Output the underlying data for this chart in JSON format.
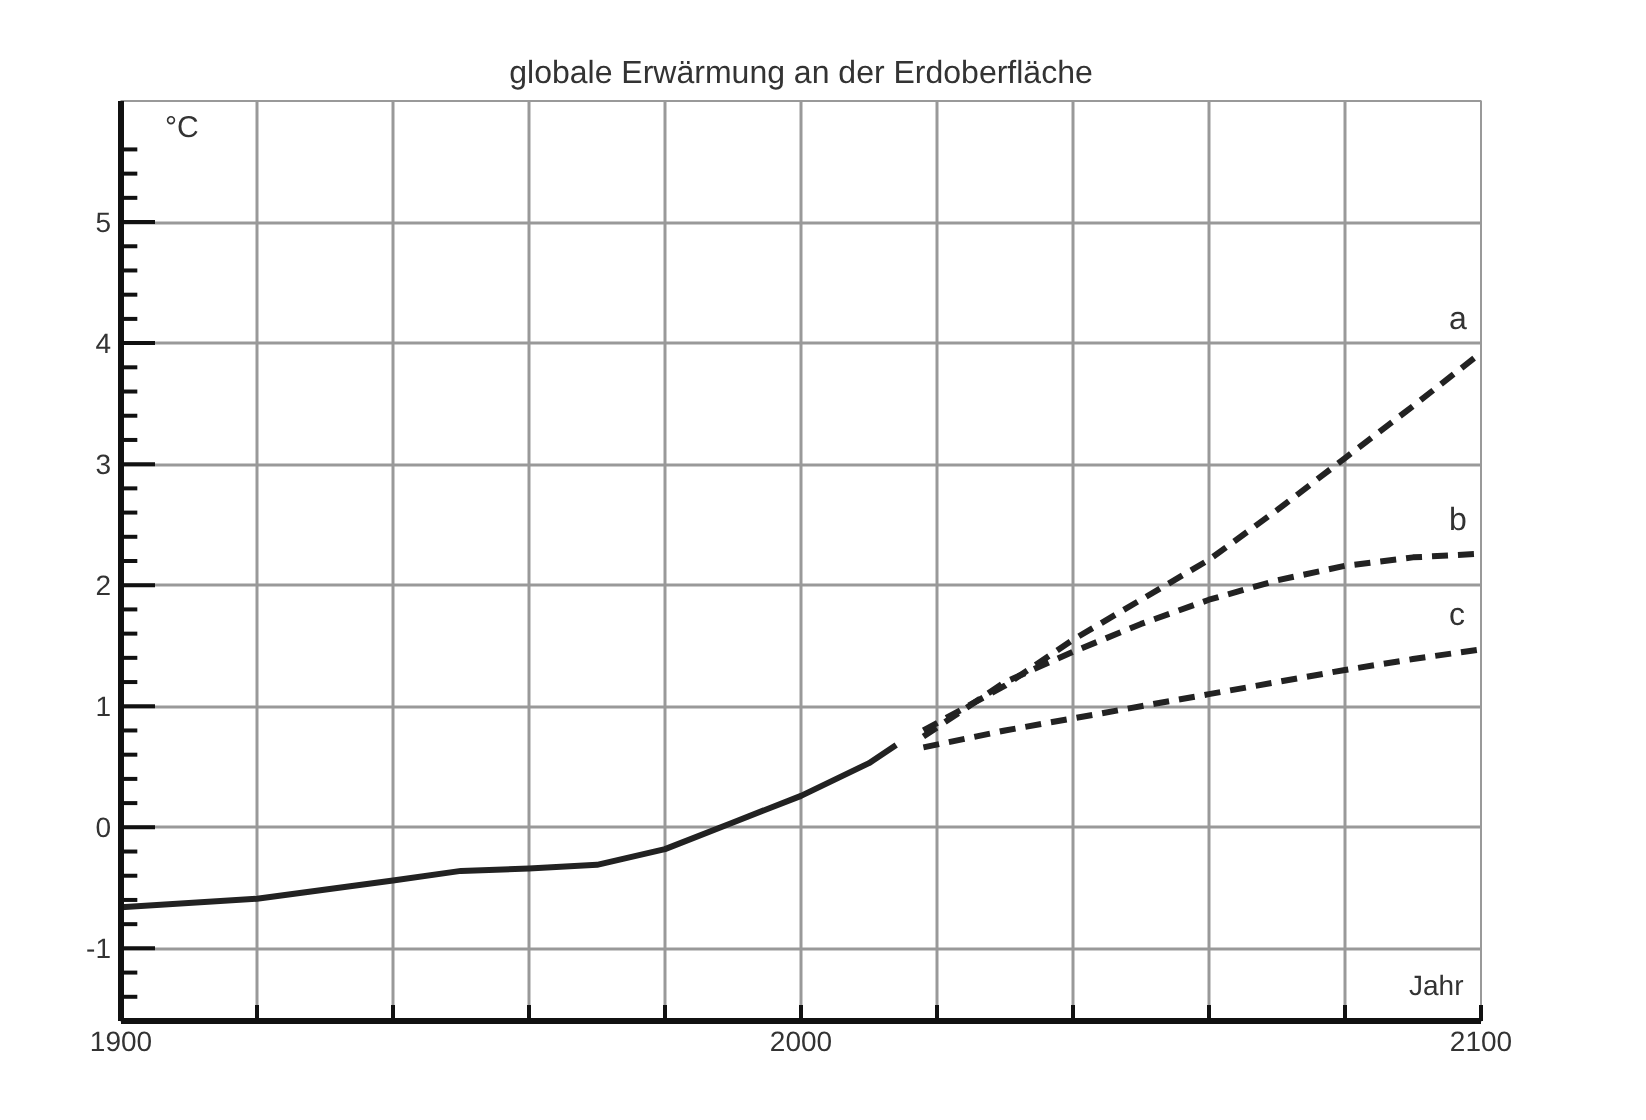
{
  "chart_data": {
    "type": "line",
    "title": "globale Erwärmung an der Erdoberfläche",
    "xlabel": "Jahr",
    "ylabel": "°C",
    "xlim": [
      1900,
      2100
    ],
    "ylim": [
      -1.6,
      6
    ],
    "xticks": [
      1900,
      {
        "value": 1920,
        "label": null
      },
      {
        "value": 1940,
        "label": null
      },
      {
        "value": 1960,
        "label": null
      },
      {
        "value": 1980,
        "label": null
      },
      2000,
      {
        "value": 2020,
        "label": null
      },
      {
        "value": 2040,
        "label": null
      },
      {
        "value": 2060,
        "label": null
      },
      {
        "value": 2080,
        "label": null
      },
      2100
    ],
    "yticks": [
      -1,
      0,
      1,
      2,
      3,
      4,
      5
    ],
    "grid": true,
    "marker": "none",
    "series": [
      {
        "color": "#222222",
        "line_style": "solid",
        "x": [
          1900,
          1920,
          1940,
          1950,
          1960,
          1970,
          1980,
          1990,
          2000,
          2010,
          2014
        ],
        "values": [
          -0.66,
          -0.59,
          -0.44,
          -0.36,
          -0.34,
          -0.31,
          -0.18,
          0.04,
          0.26,
          0.53,
          0.68
        ]
      },
      {
        "name": "a",
        "color": "#222222",
        "line_style": "dashed",
        "x": [
          2018,
          2030,
          2040,
          2050,
          2060,
          2070,
          2080,
          2090,
          2100
        ],
        "values": [
          0.8,
          1.17,
          1.55,
          1.88,
          2.21,
          2.62,
          3.05,
          3.48,
          3.92
        ]
      },
      {
        "name": "b",
        "color": "#222222",
        "line_style": "dashed",
        "x": [
          2018,
          2030,
          2040,
          2050,
          2060,
          2070,
          2080,
          2090,
          2100
        ],
        "values": [
          0.75,
          1.2,
          1.45,
          1.68,
          1.88,
          2.04,
          2.16,
          2.23,
          2.26
        ]
      },
      {
        "name": "c",
        "color": "#222222",
        "line_style": "dashed",
        "x": [
          2018,
          2030,
          2040,
          2050,
          2060,
          2070,
          2080,
          2090,
          2100
        ],
        "values": [
          0.66,
          0.8,
          0.9,
          1.0,
          1.1,
          1.2,
          1.3,
          1.39,
          1.47
        ]
      }
    ]
  }
}
